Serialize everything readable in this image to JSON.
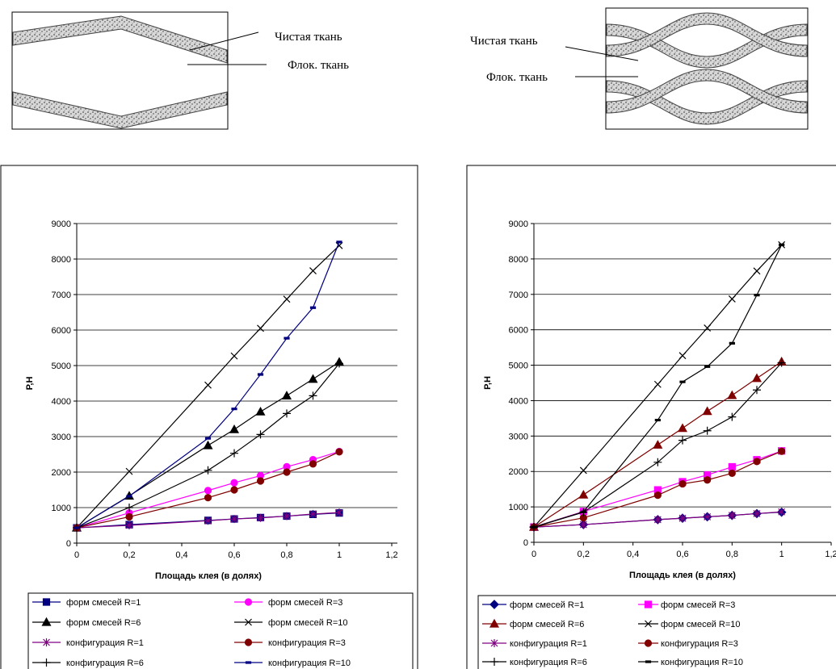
{
  "diagrams": [
    {
      "labels": [
        "Чистая ткань",
        "Флок. ткань"
      ]
    },
    {
      "labels": [
        "Чистая ткань",
        "Флок. ткань"
      ]
    }
  ],
  "chart_data": [
    {
      "type": "line",
      "x_label": "Площадь клея (в долях)",
      "y_label": "Р,Н",
      "x": [
        0,
        0.2,
        0.5,
        0.6,
        0.7,
        0.8,
        0.9,
        1
      ],
      "xlim": [
        0,
        1.2
      ],
      "xticks": [
        0,
        {
          "value": 0.2,
          "label": "0,2"
        },
        {
          "value": 0.4,
          "label": "0,4"
        },
        {
          "value": 0.6,
          "label": "0,6"
        },
        {
          "value": 0.8,
          "label": "0,8"
        },
        1,
        {
          "value": 1.2,
          "label": "1,2"
        }
      ],
      "ylim": [
        0,
        9000
      ],
      "yticks": [
        0,
        1000,
        2000,
        3000,
        4000,
        5000,
        6000,
        7000,
        8000,
        9000
      ],
      "grid": true,
      "series": [
        {
          "name": "форм смесей R=1",
          "color": "#000080",
          "marker": "square",
          "values": [
            430,
            520,
            640,
            680,
            720,
            760,
            810,
            850
          ]
        },
        {
          "name": "форм смесей R=3",
          "color": "#ff00ff",
          "marker": "circle",
          "values": [
            430,
            850,
            1480,
            1700,
            1900,
            2150,
            2350,
            2580
          ]
        },
        {
          "name": "форм смесей R=6",
          "color": "#000000",
          "marker": "triangle",
          "values": [
            430,
            1330,
            2750,
            3200,
            3700,
            4150,
            4620,
            5100
          ]
        },
        {
          "name": "форм смесей R=10",
          "color": "#000000",
          "marker": "x",
          "values": [
            430,
            2020,
            4450,
            5270,
            6050,
            6870,
            7670,
            8380
          ]
        },
        {
          "name": "конфигурация R=1",
          "color": "#800080",
          "marker": "asterisk",
          "values": [
            430,
            500,
            630,
            680,
            710,
            760,
            820,
            860
          ]
        },
        {
          "name": "конфигурация R=3",
          "color": "#800000",
          "marker": "circle",
          "values": [
            430,
            740,
            1280,
            1500,
            1750,
            2000,
            2230,
            2570
          ]
        },
        {
          "name": "конфигурация R=6",
          "color": "#000000",
          "marker": "plus",
          "values": [
            430,
            1000,
            2050,
            2530,
            3060,
            3650,
            4150,
            5060
          ]
        },
        {
          "name": "конфигурация R=10",
          "color": "#000080",
          "marker": "dash",
          "values": [
            430,
            1320,
            2950,
            3780,
            4750,
            5770,
            6630,
            8480
          ]
        }
      ]
    },
    {
      "type": "line",
      "x_label": "Площадь клея (в долях)",
      "y_label": "Р,Н",
      "x": [
        0,
        0.2,
        0.5,
        0.6,
        0.7,
        0.8,
        0.9,
        1
      ],
      "xlim": [
        0,
        1.2
      ],
      "xticks": [
        0,
        {
          "value": 0.2,
          "label": "0,2"
        },
        {
          "value": 0.4,
          "label": "0,4"
        },
        {
          "value": 0.6,
          "label": "0,6"
        },
        {
          "value": 0.8,
          "label": "0,8"
        },
        1,
        {
          "value": 1.2,
          "label": "1,2"
        }
      ],
      "ylim": [
        0,
        9000
      ],
      "yticks": [
        0,
        1000,
        2000,
        3000,
        4000,
        5000,
        6000,
        7000,
        8000,
        9000
      ],
      "grid": true,
      "series": [
        {
          "name": "форм смесей R=1",
          "color": "#000080",
          "marker": "diamond",
          "values": [
            430,
            500,
            640,
            680,
            720,
            760,
            810,
            850
          ]
        },
        {
          "name": "форм смесей R=3",
          "color": "#ff00ff",
          "marker": "square",
          "values": [
            430,
            870,
            1480,
            1710,
            1900,
            2130,
            2330,
            2580
          ]
        },
        {
          "name": "форм смесей R=6",
          "color": "#800000",
          "marker": "triangle",
          "values": [
            430,
            1340,
            2750,
            3220,
            3700,
            4150,
            4630,
            5100
          ]
        },
        {
          "name": "форм смесей R=10",
          "color": "#000000",
          "marker": "x",
          "values": [
            430,
            2030,
            4460,
            5270,
            6050,
            6870,
            7660,
            8400
          ]
        },
        {
          "name": "конфигурация R=1",
          "color": "#800080",
          "marker": "asterisk",
          "values": [
            430,
            500,
            640,
            680,
            720,
            760,
            810,
            860
          ]
        },
        {
          "name": "конфигурация R=3",
          "color": "#800000",
          "marker": "circle",
          "values": [
            430,
            690,
            1330,
            1650,
            1760,
            1950,
            2280,
            2570
          ]
        },
        {
          "name": "конфигурация R=6",
          "color": "#000000",
          "marker": "plus",
          "values": [
            430,
            850,
            2260,
            2880,
            3150,
            3540,
            4300,
            5070
          ]
        },
        {
          "name": "конфигурация R=10",
          "color": "#000000",
          "marker": "dash",
          "values": [
            430,
            860,
            3450,
            4530,
            4960,
            5620,
            6980,
            8400
          ]
        }
      ]
    }
  ]
}
